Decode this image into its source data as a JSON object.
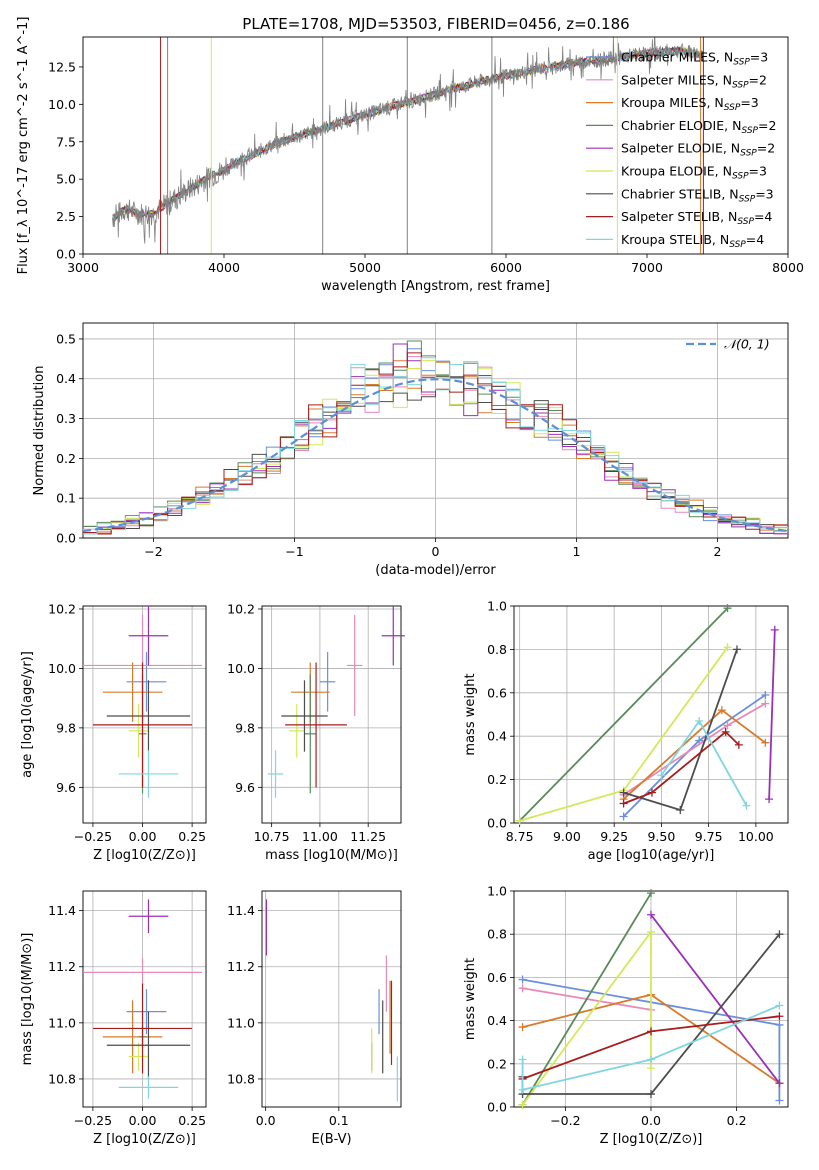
{
  "title": "PLATE=1708, MJD=53503, FIBERID=0456, z=0.186",
  "colors": [
    "#6a8fdb",
    "#e88ab8",
    "#d97a2b",
    "#5a8a5a",
    "#9b30b8",
    "#d4e85a",
    "#4d4d4d",
    "#a81c1c",
    "#7fd6e0"
  ],
  "chart_data": [
    {
      "type": "line",
      "id": "spectrum",
      "title": "PLATE=1708, MJD=53503, FIBERID=0456, z=0.186",
      "xlabel": "wavelength [Angstrom, rest frame]",
      "ylabel": "Flux [f_λ 10^-17 erg cm^-2 s^-1 A^-1]",
      "xlim": [
        3000,
        8000
      ],
      "ylim": [
        0,
        14.5
      ],
      "xticks": [
        "3000",
        "4000",
        "5000",
        "6000",
        "7000",
        "8000"
      ],
      "yticks": [
        "0.0",
        "2.5",
        "5.0",
        "7.5",
        "10.0",
        "12.5"
      ],
      "grid": false,
      "legend_position": "top-right",
      "data_color": "#808080",
      "data_x": [
        3210,
        3300,
        3400,
        3500,
        3600,
        3700,
        3800,
        3900,
        4000,
        4100,
        4200,
        4300,
        4400,
        4500,
        4600,
        4700,
        4800,
        4900,
        5000,
        5100,
        5200,
        5300,
        5400,
        5500,
        5600,
        5700,
        5800,
        5900,
        6000,
        6100,
        6200,
        6300,
        6400,
        6500,
        6600,
        6700,
        6800,
        6900,
        7000,
        7100,
        7200,
        7300,
        7400
      ],
      "data_y": [
        2.4,
        3.0,
        2.7,
        2.7,
        3.4,
        4.0,
        4.6,
        5.2,
        5.6,
        6.2,
        6.6,
        7.1,
        7.5,
        7.8,
        8.1,
        8.4,
        8.7,
        9.0,
        9.3,
        9.6,
        9.9,
        10.1,
        10.4,
        10.7,
        11.0,
        11.2,
        11.5,
        11.7,
        11.9,
        12.1,
        12.3,
        12.5,
        12.6,
        12.8,
        12.9,
        13.0,
        13.1,
        13.3,
        13.4,
        13.5,
        13.6,
        13.5,
        13.3
      ],
      "legend": [
        {
          "label": "Chabrier MILES, N",
          "sub": "SSP",
          "value": "=3"
        },
        {
          "label": "Salpeter MILES, N",
          "sub": "SSP",
          "value": "=2"
        },
        {
          "label": "Kroupa MILES, N",
          "sub": "SSP",
          "value": "=3"
        },
        {
          "label": "Chabrier ELODIE, N",
          "sub": "SSP",
          "value": "=2"
        },
        {
          "label": "Salpeter ELODIE, N",
          "sub": "SSP",
          "value": "=2"
        },
        {
          "label": "Kroupa ELODIE, N",
          "sub": "SSP",
          "value": "=3"
        },
        {
          "label": "Chabrier STELIB, N",
          "sub": "SSP",
          "value": "=3"
        },
        {
          "label": "Salpeter STELIB, N",
          "sub": "SSP",
          "value": "=4"
        },
        {
          "label": "Kroupa STELIB, N",
          "sub": "SSP",
          "value": "=4"
        }
      ]
    },
    {
      "type": "histogram",
      "id": "residuals",
      "xlabel": "(data-model)/error",
      "ylabel": "Normed distribution",
      "xlim": [
        -2.5,
        2.5
      ],
      "ylim": [
        0,
        0.54
      ],
      "xticks": [
        "−2",
        "−1",
        "0",
        "1",
        "2"
      ],
      "yticks": [
        "0.0",
        "0.1",
        "0.2",
        "0.3",
        "0.4",
        "0.5"
      ],
      "grid": true,
      "legend_position": "top-right",
      "gaussian_label": "𝒩(0, 1)",
      "gaussian_color": "#5b8fd8",
      "bin_width": 0.1
    },
    {
      "type": "errorbar",
      "id": "age-vs-Z",
      "xlabel": "Z [log10(Z/Z⊙)]",
      "ylabel": "age [log10(age/yr)]",
      "xlim": [
        -0.3,
        0.32
      ],
      "ylim": [
        9.48,
        10.21
      ],
      "xticks": [
        "−0.25",
        "0.00",
        "0.25"
      ],
      "yticks": [
        "9.6",
        "9.8",
        "10.0",
        "10.2"
      ],
      "grid": true,
      "points": [
        {
          "x": 0.02,
          "xerr": 0.1,
          "y": 9.955,
          "yerr": 0.1
        },
        {
          "x": 0.0,
          "xerr": 0.3,
          "y": 10.01,
          "yerr": 0.17
        },
        {
          "x": -0.05,
          "xerr": 0.15,
          "y": 9.92,
          "yerr": 0.1
        },
        {
          "x": 0.0,
          "xerr": 0.02,
          "y": 9.78,
          "yerr": 0.2
        },
        {
          "x": 0.03,
          "xerr": 0.1,
          "y": 10.11,
          "yerr": 0.1
        },
        {
          "x": -0.02,
          "xerr": 0.05,
          "y": 9.79,
          "yerr": 0.09
        },
        {
          "x": 0.03,
          "xerr": 0.21,
          "y": 9.84,
          "yerr": 0.12
        },
        {
          "x": 0.0,
          "xerr": 0.25,
          "y": 9.81,
          "yerr": 0.21
        },
        {
          "x": 0.03,
          "xerr": 0.15,
          "y": 9.645,
          "yerr": 0.08
        }
      ]
    },
    {
      "type": "errorbar",
      "id": "age-vs-mass",
      "xlabel": "mass [log10(M/M⊙)]",
      "ylabel": "",
      "xlim": [
        10.7,
        11.42
      ],
      "ylim": [
        9.48,
        10.21
      ],
      "xticks": [
        "10.75",
        "11.00",
        "11.25"
      ],
      "yticks": [
        "9.6",
        "9.8",
        "10.0",
        "10.2"
      ],
      "grid": true,
      "points": [
        {
          "x": 11.04,
          "xerr": 0.04,
          "y": 9.955,
          "yerr": 0.1
        },
        {
          "x": 11.18,
          "xerr": 0.04,
          "y": 10.01,
          "yerr": 0.17
        },
        {
          "x": 10.95,
          "xerr": 0.1,
          "y": 9.92,
          "yerr": 0.1
        },
        {
          "x": 10.95,
          "xerr": 0.03,
          "y": 9.78,
          "yerr": 0.2
        },
        {
          "x": 11.38,
          "xerr": 0.06,
          "y": 10.11,
          "yerr": 0.1
        },
        {
          "x": 10.88,
          "xerr": 0.04,
          "y": 9.79,
          "yerr": 0.09
        },
        {
          "x": 10.92,
          "xerr": 0.12,
          "y": 9.84,
          "yerr": 0.12
        },
        {
          "x": 10.98,
          "xerr": 0.16,
          "y": 9.81,
          "yerr": 0.21
        },
        {
          "x": 10.77,
          "xerr": 0.04,
          "y": 9.645,
          "yerr": 0.08
        }
      ]
    },
    {
      "type": "line",
      "id": "weight-vs-age",
      "xlabel": "age [log10(age/yr)]",
      "ylabel": "mass weight",
      "xlim": [
        8.72,
        10.17
      ],
      "ylim": [
        0,
        1
      ],
      "xticks": [
        "8.75",
        "9.00",
        "9.25",
        "9.50",
        "9.75",
        "10.00"
      ],
      "yticks": [
        "0.0",
        "0.2",
        "0.4",
        "0.6",
        "0.8",
        "1.0"
      ],
      "grid": true,
      "series": [
        {
          "x": [
            9.3,
            9.7,
            10.05
          ],
          "y": [
            0.03,
            0.38,
            0.59
          ]
        },
        {
          "x": [
            9.3,
            9.85,
            10.05
          ],
          "y": [
            0.13,
            0.45,
            0.55
          ]
        },
        {
          "x": [
            9.3,
            9.82,
            10.05
          ],
          "y": [
            0.11,
            0.52,
            0.37
          ]
        },
        {
          "x": [
            8.75,
            9.85
          ],
          "y": [
            0.01,
            0.99
          ]
        },
        {
          "x": [
            10.07,
            10.1
          ],
          "y": [
            0.11,
            0.89
          ]
        },
        {
          "x": [
            8.75,
            9.3,
            9.85
          ],
          "y": [
            0.01,
            0.15,
            0.81
          ]
        },
        {
          "x": [
            9.3,
            9.6,
            9.9
          ],
          "y": [
            0.14,
            0.06,
            0.8
          ]
        },
        {
          "x": [
            9.3,
            9.45,
            9.84,
            9.91
          ],
          "y": [
            0.09,
            0.14,
            0.42,
            0.36
          ]
        },
        {
          "x": [
            9.5,
            9.7,
            9.95
          ],
          "y": [
            0.22,
            0.47,
            0.08
          ]
        }
      ]
    },
    {
      "type": "errorbar",
      "id": "mass-vs-Z",
      "xlabel": "Z [log10(Z/Z⊙)]",
      "ylabel": "mass [log10(M/M⊙)]",
      "xlim": [
        -0.3,
        0.32
      ],
      "ylim": [
        10.7,
        11.47
      ],
      "xticks": [
        "−0.25",
        "0.00",
        "0.25"
      ],
      "yticks": [
        "10.8",
        "11.0",
        "11.2",
        "11.4"
      ],
      "grid": true,
      "points": [
        {
          "x": 0.02,
          "xerr": 0.1,
          "y": 11.04,
          "yerr": 0.08
        },
        {
          "x": 0.0,
          "xerr": 0.3,
          "y": 11.18,
          "yerr": 0.05
        },
        {
          "x": -0.05,
          "xerr": 0.15,
          "y": 10.95,
          "yerr": 0.13
        },
        {
          "x": 0.0,
          "xerr": 0.02,
          "y": 10.95,
          "yerr": 0.04
        },
        {
          "x": 0.03,
          "xerr": 0.1,
          "y": 11.38,
          "yerr": 0.06
        },
        {
          "x": -0.02,
          "xerr": 0.05,
          "y": 10.88,
          "yerr": 0.05
        },
        {
          "x": 0.03,
          "xerr": 0.21,
          "y": 10.92,
          "yerr": 0.12
        },
        {
          "x": 0.0,
          "xerr": 0.25,
          "y": 10.98,
          "yerr": 0.16
        },
        {
          "x": 0.03,
          "xerr": 0.15,
          "y": 10.77,
          "yerr": 0.04
        }
      ]
    },
    {
      "type": "errorbar",
      "id": "mass-vs-ebv",
      "xlabel": "E(B-V)",
      "ylabel": "",
      "xlim": [
        -0.005,
        0.185
      ],
      "ylim": [
        10.7,
        11.47
      ],
      "xticks": [
        "0.0",
        "0.1"
      ],
      "yticks": [
        "10.8",
        "11.0",
        "11.2",
        "11.4"
      ],
      "grid": true,
      "points": [
        {
          "x": 0.155,
          "xerr": 0,
          "y": 11.04,
          "yerr": 0.08
        },
        {
          "x": 0.165,
          "xerr": 0,
          "y": 11.14,
          "yerr": 0.1
        },
        {
          "x": 0.17,
          "xerr": 0,
          "y": 11.02,
          "yerr": 0.13
        },
        {
          "x": 0.145,
          "xerr": 0,
          "y": 10.88,
          "yerr": 0.05
        },
        {
          "x": 0.001,
          "xerr": 0,
          "y": 11.34,
          "yerr": 0.1
        },
        {
          "x": 0.145,
          "xerr": 0,
          "y": 10.9,
          "yerr": 0.08
        },
        {
          "x": 0.16,
          "xerr": 0,
          "y": 10.95,
          "yerr": 0.13
        },
        {
          "x": 0.172,
          "xerr": 0,
          "y": 11.0,
          "yerr": 0.15
        },
        {
          "x": 0.18,
          "xerr": 0,
          "y": 10.8,
          "yerr": 0.08
        }
      ]
    },
    {
      "type": "line",
      "id": "weight-vs-Z",
      "xlabel": "Z [log10(Z/Z⊙)]",
      "ylabel": "mass weight",
      "xlim": [
        -0.32,
        0.32
      ],
      "ylim": [
        0,
        1
      ],
      "xticks": [
        "−0.2",
        "0.0",
        "0.2"
      ],
      "yticks": [
        "0.0",
        "0.2",
        "0.4",
        "0.6",
        "0.8",
        "1.0"
      ],
      "grid": true,
      "series": [
        {
          "x": [
            -0.3,
            0.3,
            0.3
          ],
          "y": [
            0.59,
            0.38,
            0.03
          ]
        },
        {
          "x": [
            -0.3,
            0.0
          ],
          "y": [
            0.55,
            0.45
          ]
        },
        {
          "x": [
            -0.3,
            0.0,
            0.3
          ],
          "y": [
            0.37,
            0.52,
            0.11
          ]
        },
        {
          "x": [
            -0.3,
            0.0
          ],
          "y": [
            0.01,
            0.99
          ]
        },
        {
          "x": [
            0.0,
            0.3
          ],
          "y": [
            0.89,
            0.11
          ]
        },
        {
          "x": [
            -0.3,
            0.0,
            0.0
          ],
          "y": [
            0.01,
            0.81,
            0.18
          ]
        },
        {
          "x": [
            -0.3,
            -0.3,
            0.0,
            0.3
          ],
          "y": [
            0.14,
            0.06,
            0.06,
            0.8
          ]
        },
        {
          "x": [
            -0.3,
            0.0,
            0.3
          ],
          "y": [
            0.13,
            0.35,
            0.42
          ]
        },
        {
          "x": [
            -0.3,
            -0.3,
            0.0,
            0.3
          ],
          "y": [
            0.22,
            0.08,
            0.22,
            0.47
          ]
        }
      ]
    }
  ]
}
